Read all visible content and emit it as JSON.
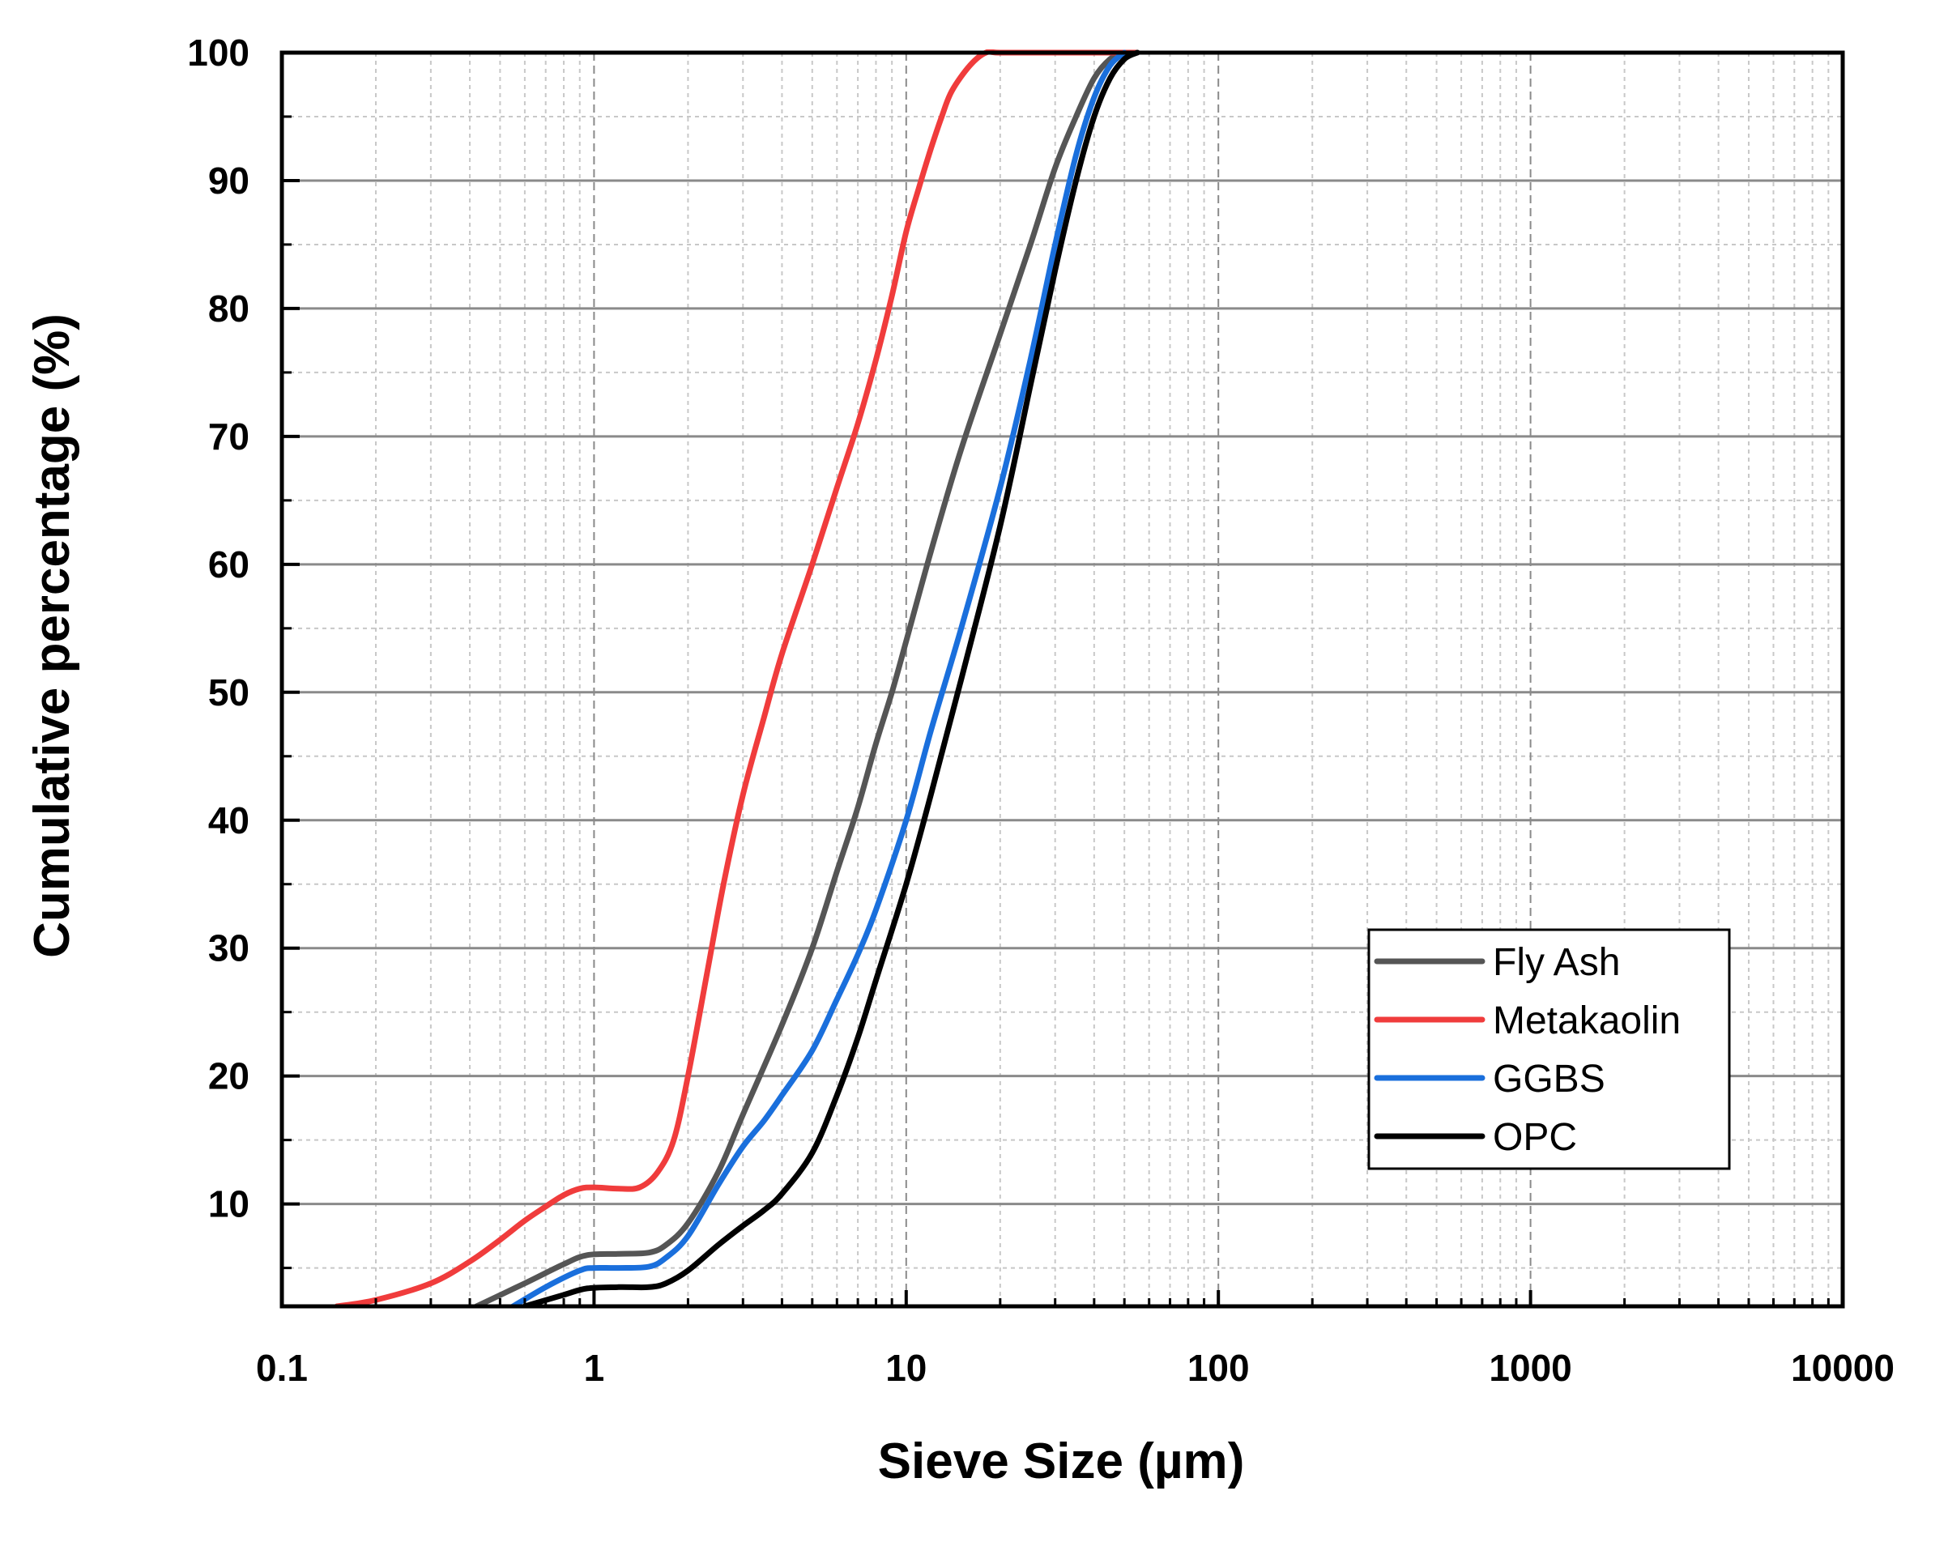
{
  "chart_data": {
    "type": "line",
    "title": "",
    "xlabel": "Sieve Size (µm)",
    "ylabel": "Cumulative percentage (%)",
    "xscale": "log",
    "xlim": [
      0.1,
      10000
    ],
    "ylim": [
      2,
      100
    ],
    "x_ticks": [
      {
        "value": 0.1,
        "label": "0.1"
      },
      {
        "value": 1,
        "label": "1"
      },
      {
        "value": 10,
        "label": "10"
      },
      {
        "value": 100,
        "label": "100"
      },
      {
        "value": 1000,
        "label": "1000"
      },
      {
        "value": 10000,
        "label": "10000"
      }
    ],
    "y_ticks": [
      {
        "value": 10,
        "label": "10"
      },
      {
        "value": 20,
        "label": "20"
      },
      {
        "value": 30,
        "label": "30"
      },
      {
        "value": 40,
        "label": "40"
      },
      {
        "value": 50,
        "label": "50"
      },
      {
        "value": 60,
        "label": "60"
      },
      {
        "value": 70,
        "label": "70"
      },
      {
        "value": 80,
        "label": "80"
      },
      {
        "value": 90,
        "label": "90"
      },
      {
        "value": 100,
        "label": "100"
      }
    ],
    "grid": true,
    "legend_position": "bottom-right",
    "series": [
      {
        "name": "Fly Ash",
        "color": "#555555",
        "x": [
          0.42,
          0.6,
          0.8,
          0.95,
          1.2,
          1.5,
          1.7,
          2.0,
          2.5,
          3.0,
          4.0,
          5.0,
          6.0,
          7.0,
          8.0,
          9.0,
          10.0,
          12.0,
          15.0,
          20.0,
          25.0,
          30.0,
          35.0,
          40.0,
          45.0,
          50.0
        ],
        "y": [
          2,
          3.8,
          5.3,
          6.0,
          6.1,
          6.2,
          6.8,
          8.5,
          12.5,
          17.0,
          24.0,
          30.0,
          36.0,
          41.0,
          46.0,
          50.0,
          54.0,
          61.0,
          69.0,
          78.0,
          85.0,
          91.0,
          95.0,
          98.0,
          99.5,
          100
        ]
      },
      {
        "name": "Metakaolin",
        "color": "#f03c3c",
        "x": [
          0.15,
          0.2,
          0.3,
          0.4,
          0.5,
          0.6,
          0.7,
          0.8,
          0.9,
          1.0,
          1.2,
          1.4,
          1.6,
          1.8,
          2.0,
          2.3,
          2.6,
          3.0,
          3.5,
          4.0,
          5.0,
          6.0,
          7.0,
          8.0,
          9.0,
          10.0,
          11.0,
          12.0,
          13.0,
          14.0,
          16.0,
          18.0,
          20.0,
          30.0,
          55.0
        ],
        "y": [
          2,
          2.5,
          3.8,
          5.5,
          7.2,
          8.7,
          9.8,
          10.7,
          11.2,
          11.3,
          11.2,
          11.3,
          12.5,
          15.0,
          20.0,
          28.0,
          35.0,
          42.0,
          48.0,
          53.0,
          60.0,
          66.0,
          71.0,
          76.0,
          81.0,
          86.0,
          89.5,
          92.5,
          95.0,
          97.0,
          99.0,
          100,
          100,
          100,
          100
        ]
      },
      {
        "name": "GGBS",
        "color": "#1a6fdc",
        "x": [
          0.55,
          0.7,
          0.9,
          1.0,
          1.2,
          1.5,
          1.7,
          2.0,
          2.5,
          3.0,
          3.5,
          4.0,
          5.0,
          6.0,
          7.0,
          8.0,
          10.0,
          12.0,
          15.0,
          20.0,
          25.0,
          30.0,
          35.0,
          40.0,
          45.0,
          50.0
        ],
        "y": [
          2,
          3.5,
          4.8,
          5.0,
          5.0,
          5.1,
          5.8,
          7.5,
          11.5,
          14.5,
          16.5,
          18.5,
          22.0,
          26.0,
          29.5,
          33.0,
          40.0,
          47.0,
          55.0,
          66.0,
          76.0,
          85.0,
          92.0,
          96.5,
          99.0,
          100
        ]
      },
      {
        "name": "OPC",
        "color": "#000000",
        "x": [
          0.6,
          0.8,
          0.95,
          1.2,
          1.5,
          1.7,
          2.0,
          2.5,
          3.0,
          3.5,
          4.0,
          5.0,
          6.0,
          7.0,
          8.0,
          10.0,
          12.0,
          15.0,
          20.0,
          25.0,
          30.0,
          35.0,
          40.0,
          45.0,
          50.0,
          55.0
        ],
        "y": [
          2,
          2.9,
          3.4,
          3.5,
          3.5,
          3.8,
          4.8,
          6.8,
          8.3,
          9.5,
          10.8,
          14.0,
          18.5,
          23.0,
          27.5,
          35.0,
          42.0,
          51.0,
          63.0,
          74.0,
          83.0,
          90.0,
          95.0,
          98.0,
          99.5,
          100
        ]
      }
    ]
  }
}
